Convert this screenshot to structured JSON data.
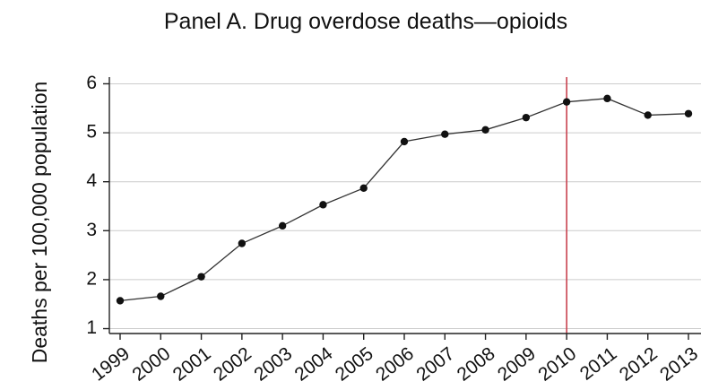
{
  "chart_data": {
    "type": "line",
    "title": "Panel A. Drug overdose deaths—opioids",
    "xlabel": "",
    "ylabel": "Deaths per 100,000 population",
    "x": [
      "1999",
      "2000",
      "2001",
      "2002",
      "2003",
      "2004",
      "2005",
      "2006",
      "2007",
      "2008",
      "2009",
      "2010",
      "2011",
      "2012",
      "2013"
    ],
    "series": [
      {
        "values": [
          1.57,
          1.66,
          2.06,
          2.74,
          3.1,
          3.53,
          3.87,
          4.82,
          4.97,
          5.06,
          5.31,
          5.63,
          5.7,
          5.36,
          5.39
        ]
      }
    ],
    "ylim": [
      0.9,
      6.1
    ],
    "yticks": [
      1,
      2,
      3,
      4,
      5,
      6
    ],
    "grid": true,
    "reference_line": {
      "x": "2010",
      "color": "#c8424f"
    },
    "colors": {
      "line": "#333333",
      "marker": "#111111",
      "grid": "#cccccc",
      "axis": "#222222"
    }
  }
}
